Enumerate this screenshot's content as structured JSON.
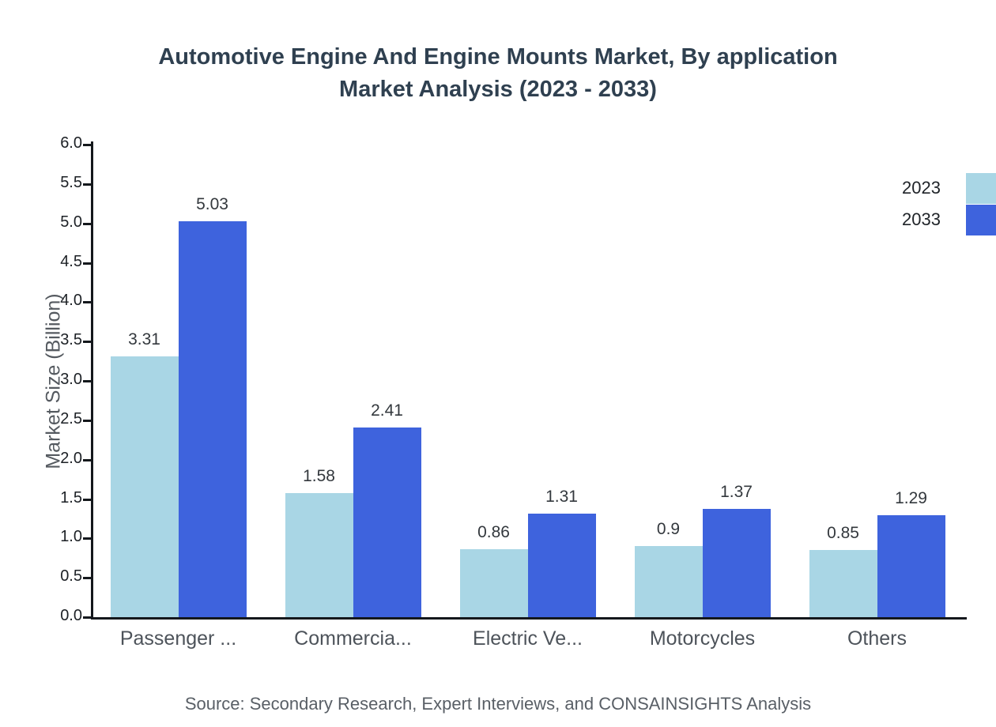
{
  "title": {
    "line1": "Automotive Engine And Engine Mounts Market, By application",
    "line2": "Market Analysis (2023 - 2033)"
  },
  "source": "Source: Secondary Research, Expert Interviews, and CONSAINSIGHTS Analysis",
  "colors": {
    "series2023": "#a9d6e5",
    "series2033": "#3e63dd",
    "axis": "#14181c",
    "title": "#2f4050"
  },
  "chart_data": {
    "type": "bar",
    "title": "Automotive Engine And Engine Mounts Market, By application Market Analysis (2023 - 2033)",
    "categories": [
      "Passenger ...",
      "Commercia...",
      "Electric Ve...",
      "Motorcycles",
      "Others"
    ],
    "series": [
      {
        "name": "2023",
        "color_key": "series2023",
        "values": [
          3.31,
          1.58,
          0.86,
          0.9,
          0.85
        ],
        "labels": [
          "3.31",
          "1.58",
          "0.86",
          "0.9",
          "0.85"
        ]
      },
      {
        "name": "2033",
        "color_key": "series2033",
        "values": [
          5.03,
          2.41,
          1.31,
          1.37,
          1.29
        ],
        "labels": [
          "5.03",
          "2.41",
          "1.31",
          "1.37",
          "1.29"
        ]
      }
    ],
    "xlabel": "",
    "ylabel": "Market Size (Billion)",
    "ylim": [
      0,
      6
    ],
    "ytick_step": 0.5,
    "grid": false,
    "legend_position": "top-right"
  }
}
